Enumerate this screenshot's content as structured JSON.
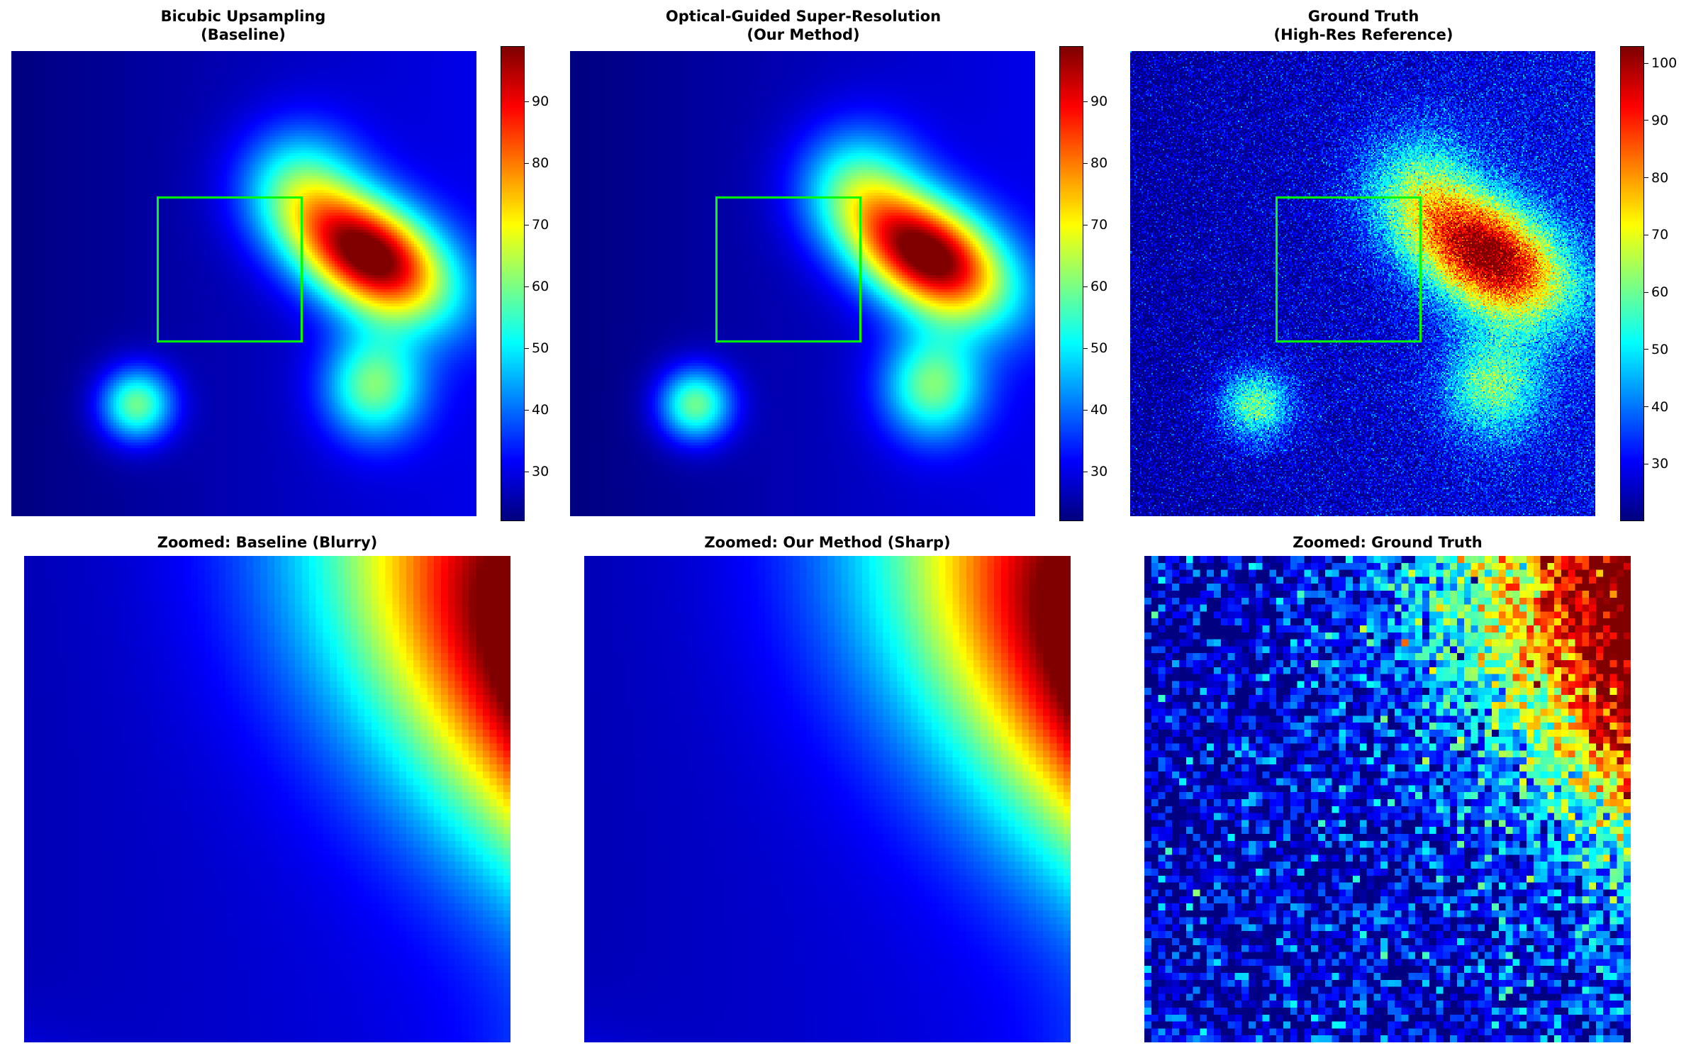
{
  "chart_data": [
    {
      "type": "heatmap",
      "title": "Bicubic Upsampling\n(Baseline)",
      "colormap": "jet",
      "colorbar": {
        "range": [
          22,
          99
        ],
        "ticks": [
          30,
          40,
          50,
          60,
          70,
          80,
          90
        ]
      },
      "roi_box": true,
      "field": "smooth"
    },
    {
      "type": "heatmap",
      "title": "Optical-Guided Super-Resolution\n(Our Method)",
      "colormap": "jet",
      "colorbar": {
        "range": [
          22,
          99
        ],
        "ticks": [
          30,
          40,
          50,
          60,
          70,
          80,
          90
        ]
      },
      "roi_box": true,
      "field": "smooth"
    },
    {
      "type": "heatmap",
      "title": "Ground Truth\n(High-Res Reference)",
      "colormap": "jet",
      "colorbar": {
        "range": [
          20,
          103
        ],
        "ticks": [
          30,
          40,
          50,
          60,
          70,
          80,
          90,
          100
        ]
      },
      "roi_box": true,
      "field": "noisy"
    },
    {
      "type": "heatmap",
      "title": "Zoomed: Baseline (Blurry)",
      "colormap": "jet",
      "field": "zoom-smooth"
    },
    {
      "type": "heatmap",
      "title": "Zoomed: Our Method (Sharp)",
      "colormap": "jet",
      "field": "zoom-smooth"
    },
    {
      "type": "heatmap",
      "title": "Zoomed: Ground Truth",
      "colormap": "jet",
      "field": "zoom-noisy"
    }
  ]
}
